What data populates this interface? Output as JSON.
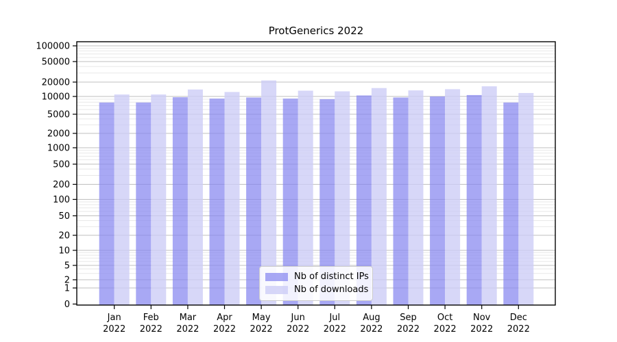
{
  "chart_data": {
    "type": "bar",
    "title": "ProtGenerics 2022",
    "categories": [
      "Jan",
      "Feb",
      "Mar",
      "Apr",
      "May",
      "Jun",
      "Jul",
      "Aug",
      "Sep",
      "Oct",
      "Nov",
      "Dec"
    ],
    "year_label": "2022",
    "series": [
      {
        "name": "Nb of distinct IPs",
        "color": "#8686f0",
        "fill_opacity": 0.72,
        "values": [
          7900,
          7900,
          9700,
          9200,
          9600,
          9200,
          9000,
          10500,
          9600,
          10000,
          10700,
          7900
        ]
      },
      {
        "name": "Nb of downloads",
        "color": "#ccccf6",
        "fill_opacity": 0.78,
        "values": [
          11000,
          11000,
          14000,
          12400,
          21500,
          13200,
          12800,
          15000,
          13400,
          14200,
          16300,
          11800
        ]
      }
    ],
    "yticks": [
      0,
      1,
      2,
      5,
      10,
      20,
      50,
      100,
      200,
      500,
      1000,
      2000,
      5000,
      10000,
      20000,
      50000,
      100000
    ],
    "ylim": [
      0,
      100000
    ],
    "yscale": "symlog",
    "xlabel": "",
    "ylabel": "",
    "grid": "both",
    "legend_position": "lower center",
    "colors": {
      "major_grid": "#bfbfbf",
      "minor_grid": "#e8e8e8",
      "spine": "#000000",
      "text": "#000000"
    }
  }
}
